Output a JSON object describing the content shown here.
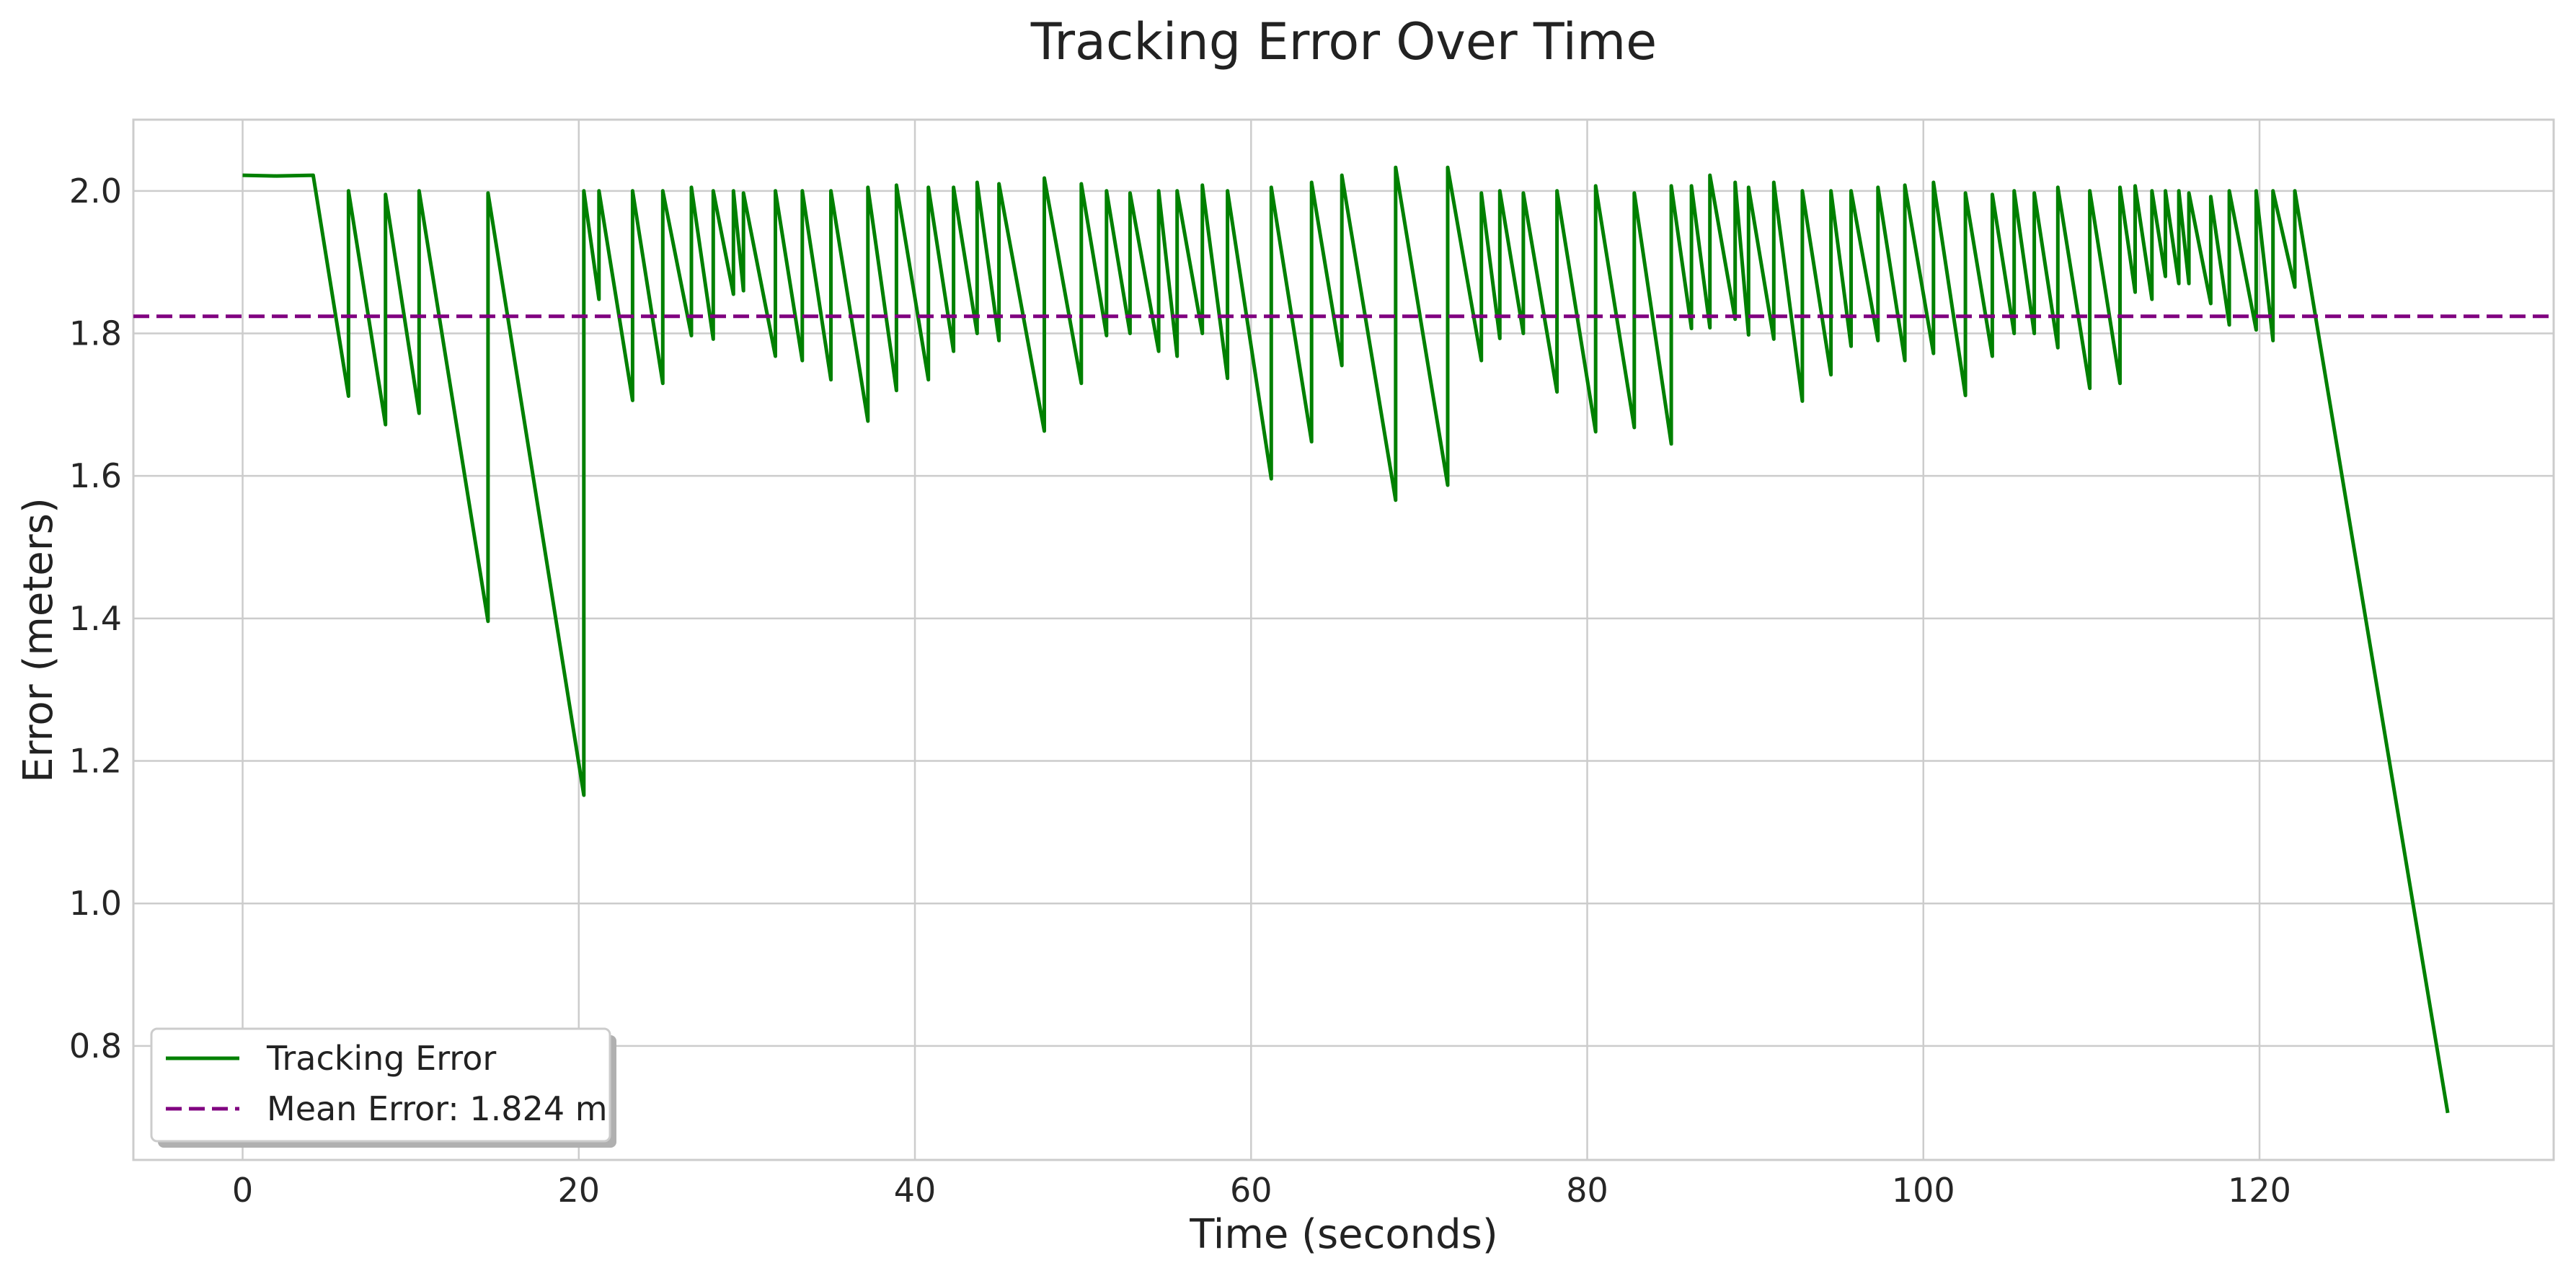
{
  "chart_data": {
    "type": "line",
    "title": "Tracking Error Over Time",
    "xlabel": "Time (seconds)",
    "ylabel": "Error (meters)",
    "xlim": [
      -6.5,
      137.5
    ],
    "ylim": [
      0.64,
      2.1
    ],
    "xticks": [
      0,
      20,
      40,
      60,
      80,
      100,
      120
    ],
    "yticks": [
      0.8,
      1.0,
      1.2,
      1.4,
      1.6,
      1.8,
      2.0
    ],
    "grid": true,
    "legend_position": "lower-left",
    "colors": {
      "tracking": "#008000",
      "mean": "#800080"
    },
    "series": [
      {
        "name": "Tracking Error",
        "style": "solid",
        "points": [
          [
            0,
            2.022
          ],
          [
            2,
            2.021
          ],
          [
            4.2,
            2.022
          ],
          [
            6.3,
            1.712
          ],
          [
            6.3,
            2.0
          ],
          [
            8.5,
            1.672
          ],
          [
            8.5,
            1.995
          ],
          [
            10.5,
            1.688
          ],
          [
            10.5,
            2.0
          ],
          [
            14.6,
            1.396
          ],
          [
            14.6,
            1.997
          ],
          [
            20.3,
            1.152
          ],
          [
            20.3,
            2.0
          ],
          [
            21.2,
            1.848
          ],
          [
            21.2,
            2.0
          ],
          [
            23.2,
            1.706
          ],
          [
            23.2,
            2.0
          ],
          [
            25.0,
            1.73
          ],
          [
            25.0,
            2.0
          ],
          [
            26.7,
            1.797
          ],
          [
            26.7,
            2.005
          ],
          [
            28.0,
            1.792
          ],
          [
            28.0,
            2.0
          ],
          [
            29.2,
            1.855
          ],
          [
            29.2,
            2.0
          ],
          [
            29.8,
            1.86
          ],
          [
            29.8,
            1.997
          ],
          [
            31.7,
            1.768
          ],
          [
            31.7,
            2.0
          ],
          [
            33.3,
            1.762
          ],
          [
            33.3,
            2.0
          ],
          [
            35.0,
            1.735
          ],
          [
            35.0,
            2.0
          ],
          [
            37.2,
            1.677
          ],
          [
            37.2,
            2.005
          ],
          [
            38.9,
            1.72
          ],
          [
            38.9,
            2.008
          ],
          [
            40.8,
            1.735
          ],
          [
            40.8,
            2.005
          ],
          [
            42.3,
            1.775
          ],
          [
            42.3,
            2.005
          ],
          [
            43.7,
            1.8
          ],
          [
            43.7,
            2.012
          ],
          [
            45.0,
            1.79
          ],
          [
            45.0,
            2.01
          ],
          [
            47.7,
            1.663
          ],
          [
            47.7,
            2.018
          ],
          [
            49.9,
            1.73
          ],
          [
            49.9,
            2.01
          ],
          [
            51.4,
            1.797
          ],
          [
            51.4,
            2.0
          ],
          [
            52.8,
            1.8
          ],
          [
            52.8,
            1.997
          ],
          [
            54.5,
            1.775
          ],
          [
            54.5,
            2.0
          ],
          [
            55.6,
            1.768
          ],
          [
            55.6,
            2.0
          ],
          [
            57.1,
            1.8
          ],
          [
            57.1,
            2.008
          ],
          [
            58.6,
            1.737
          ],
          [
            58.6,
            2.0
          ],
          [
            61.2,
            1.596
          ],
          [
            61.2,
            2.005
          ],
          [
            63.6,
            1.648
          ],
          [
            63.6,
            2.012
          ],
          [
            65.4,
            1.755
          ],
          [
            65.4,
            2.022
          ],
          [
            68.6,
            1.566
          ],
          [
            68.6,
            2.033
          ],
          [
            71.7,
            1.587
          ],
          [
            71.7,
            2.033
          ],
          [
            73.7,
            1.762
          ],
          [
            73.7,
            1.997
          ],
          [
            74.8,
            1.793
          ],
          [
            74.8,
            2.0
          ],
          [
            76.2,
            1.8
          ],
          [
            76.2,
            1.997
          ],
          [
            78.2,
            1.718
          ],
          [
            78.2,
            2.0
          ],
          [
            80.5,
            1.662
          ],
          [
            80.5,
            2.007
          ],
          [
            82.8,
            1.668
          ],
          [
            82.8,
            1.997
          ],
          [
            85.0,
            1.645
          ],
          [
            85.0,
            2.007
          ],
          [
            86.2,
            1.807
          ],
          [
            86.2,
            2.007
          ],
          [
            87.3,
            1.808
          ],
          [
            87.3,
            2.022
          ],
          [
            88.8,
            1.82
          ],
          [
            88.8,
            2.012
          ],
          [
            89.6,
            1.798
          ],
          [
            89.6,
            2.005
          ],
          [
            91.1,
            1.792
          ],
          [
            91.1,
            2.012
          ],
          [
            92.8,
            1.705
          ],
          [
            92.8,
            2.0
          ],
          [
            94.5,
            1.742
          ],
          [
            94.5,
            2.0
          ],
          [
            95.7,
            1.782
          ],
          [
            95.7,
            2.0
          ],
          [
            97.3,
            1.79
          ],
          [
            97.3,
            2.005
          ],
          [
            98.9,
            1.762
          ],
          [
            98.9,
            2.008
          ],
          [
            100.6,
            1.772
          ],
          [
            100.6,
            2.012
          ],
          [
            102.5,
            1.713
          ],
          [
            102.5,
            1.997
          ],
          [
            104.1,
            1.768
          ],
          [
            104.1,
            1.995
          ],
          [
            105.4,
            1.8
          ],
          [
            105.4,
            2.0
          ],
          [
            106.6,
            1.8
          ],
          [
            106.6,
            1.997
          ],
          [
            108.0,
            1.78
          ],
          [
            108.0,
            2.005
          ],
          [
            109.9,
            1.723
          ],
          [
            109.9,
            2.0
          ],
          [
            111.7,
            1.73
          ],
          [
            111.7,
            2.005
          ],
          [
            112.6,
            1.858
          ],
          [
            112.6,
            2.007
          ],
          [
            113.6,
            1.848
          ],
          [
            113.6,
            2.0
          ],
          [
            114.4,
            1.88
          ],
          [
            114.4,
            2.0
          ],
          [
            115.2,
            1.87
          ],
          [
            115.2,
            2.0
          ],
          [
            115.8,
            1.87
          ],
          [
            115.8,
            1.997
          ],
          [
            117.1,
            1.842
          ],
          [
            117.1,
            1.992
          ],
          [
            118.2,
            1.812
          ],
          [
            118.2,
            2.0
          ],
          [
            119.8,
            1.805
          ],
          [
            119.8,
            2.0
          ],
          [
            120.8,
            1.79
          ],
          [
            120.8,
            2.0
          ],
          [
            122.1,
            1.865
          ],
          [
            122.1,
            2.0
          ],
          [
            123.3,
            1.828
          ],
          [
            131.2,
            0.706
          ]
        ]
      },
      {
        "name": "Mean Error: 1.824 m",
        "style": "dashed",
        "points": [
          [
            -6.5,
            1.824
          ],
          [
            137.5,
            1.824
          ]
        ]
      }
    ]
  }
}
